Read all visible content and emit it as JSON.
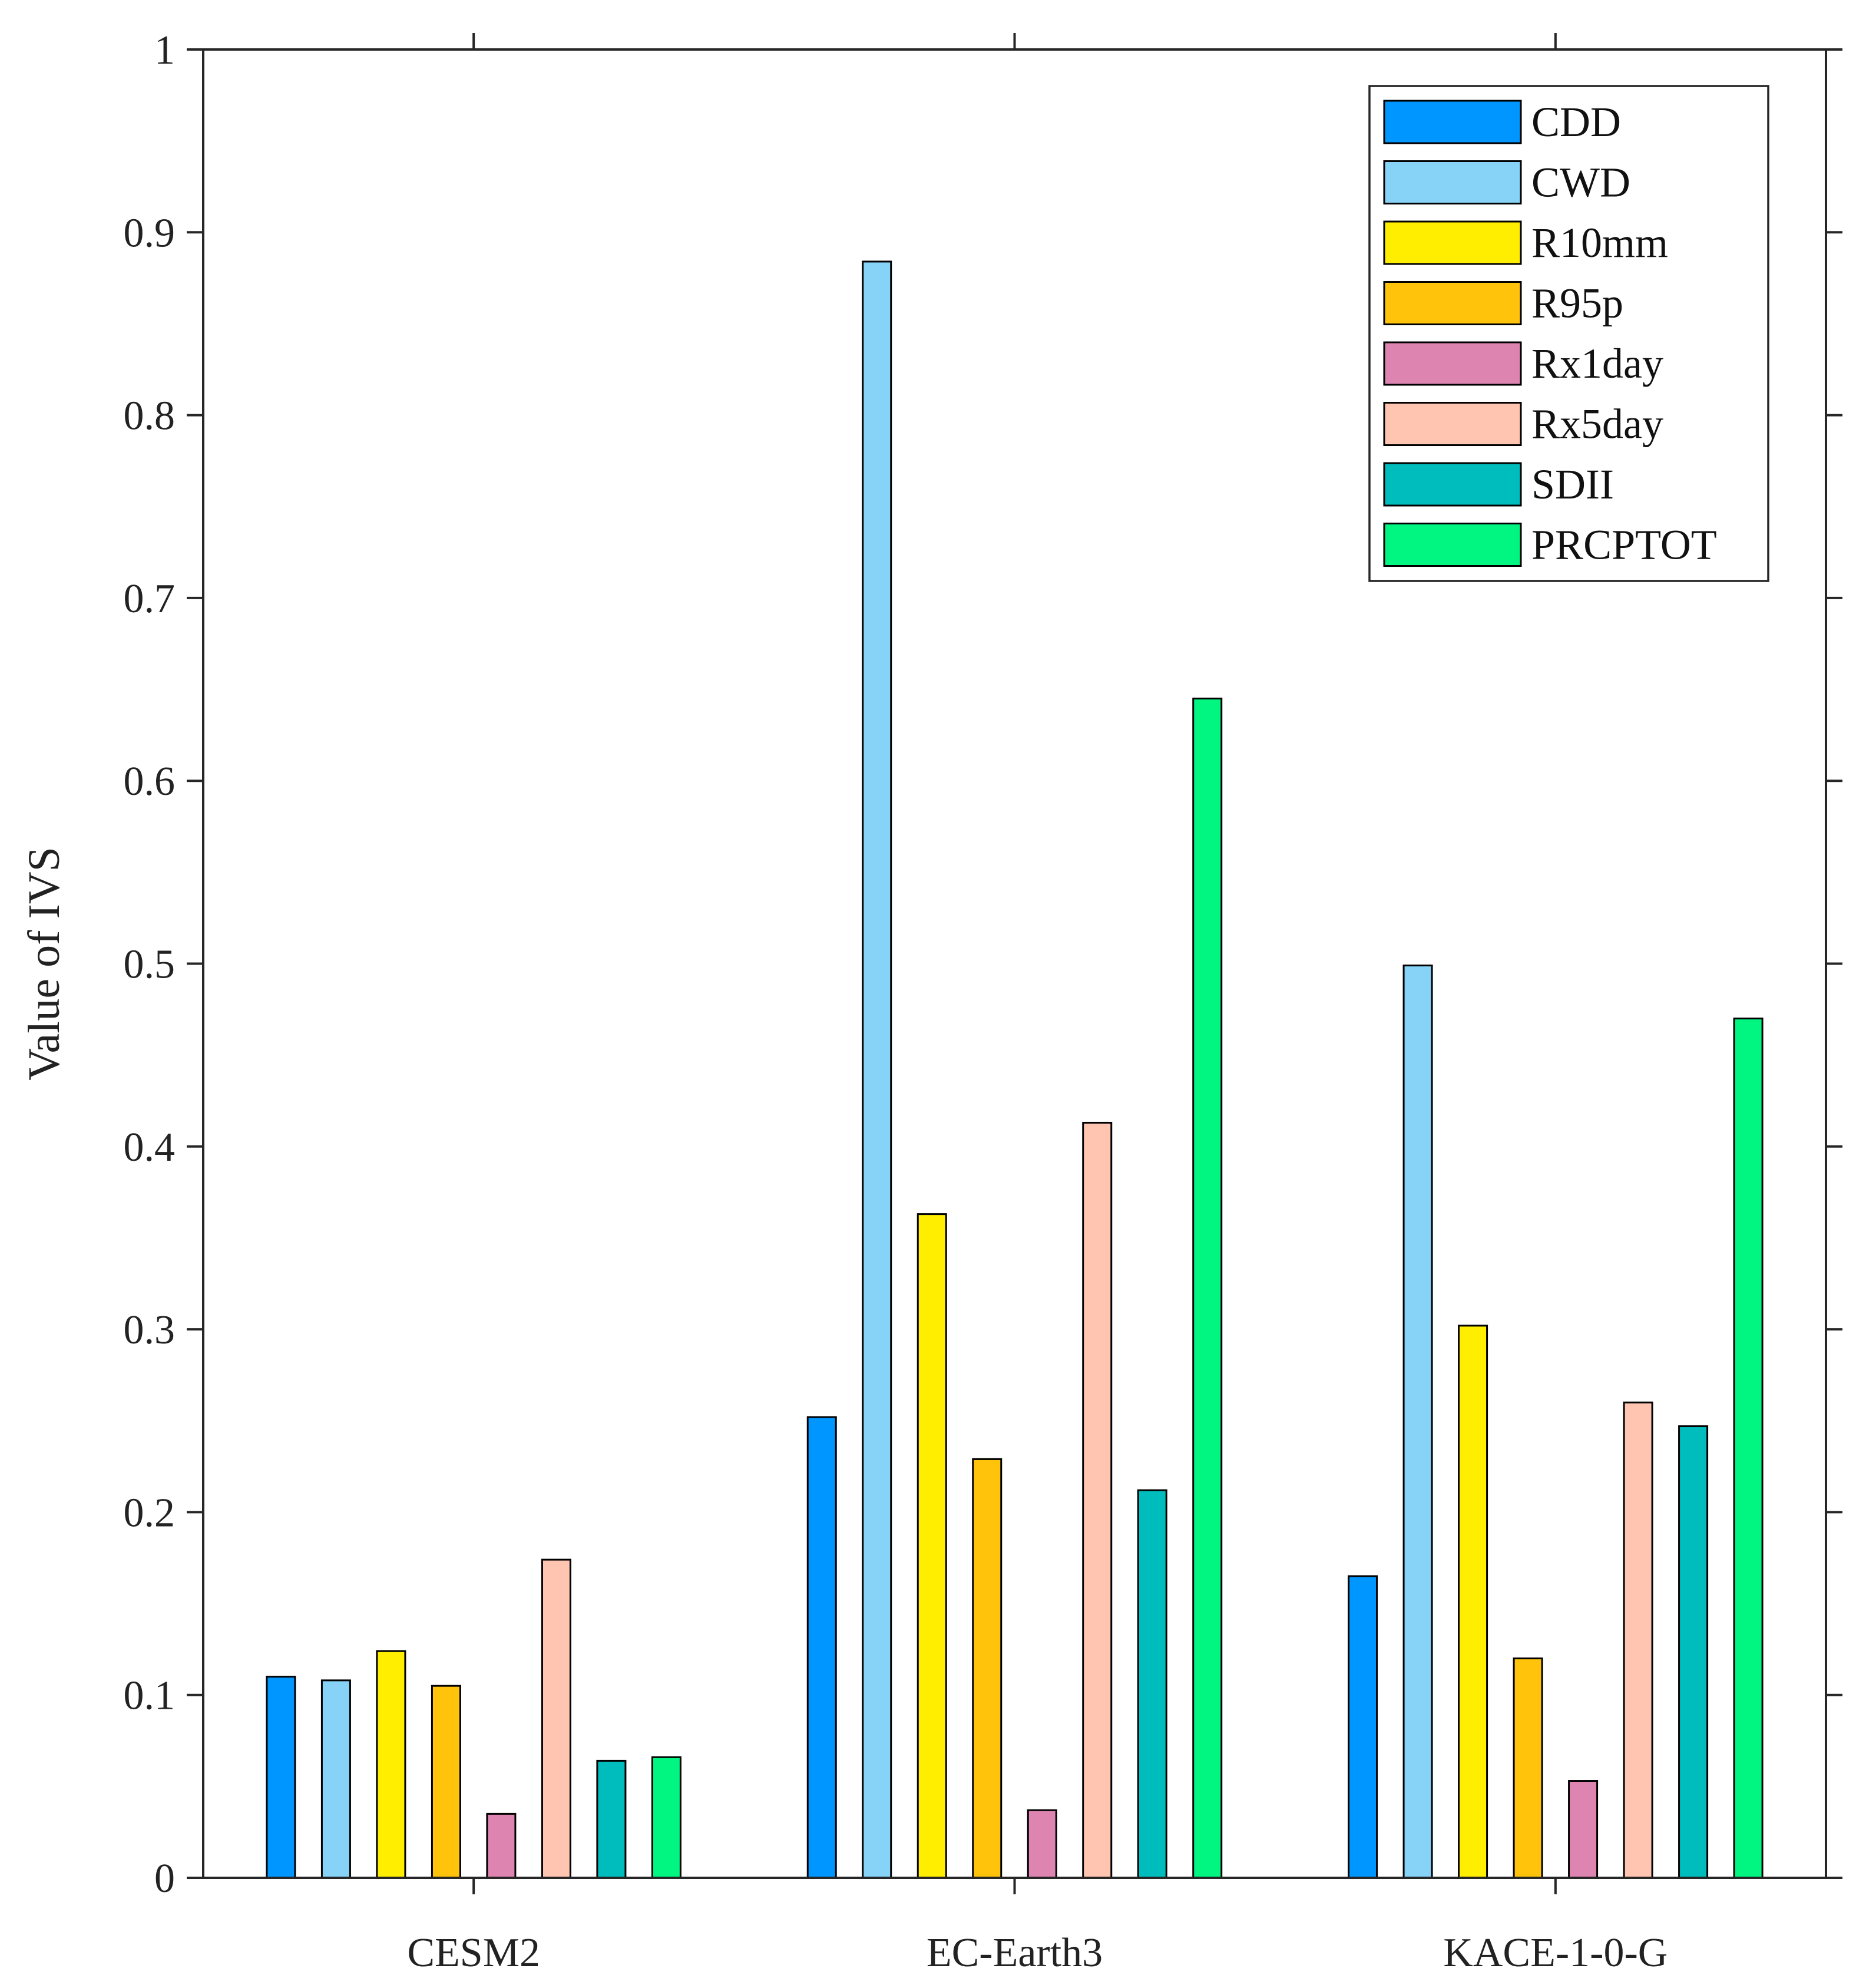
{
  "chart_data": {
    "type": "bar",
    "title": "",
    "xlabel": "",
    "ylabel": "Value of  IVS",
    "ylim": [
      0,
      1
    ],
    "yticks": [
      0,
      0.1,
      0.2,
      0.3,
      0.4,
      0.5,
      0.6,
      0.7,
      0.8,
      0.9,
      1
    ],
    "ytick_labels": [
      "0",
      "0.1",
      "0.2",
      "0.3",
      "0.4",
      "0.5",
      "0.6",
      "0.7",
      "0.8",
      "0.9",
      "1"
    ],
    "categories": [
      "CESM2",
      "EC-Earth3",
      "KACE-1-0-G"
    ],
    "legend_position": "top-right",
    "grid": false,
    "series": [
      {
        "name": "CDD",
        "color": "#0096ff",
        "values": [
          0.11,
          0.252,
          0.165
        ]
      },
      {
        "name": "CWD",
        "color": "#87d3f8",
        "values": [
          0.108,
          0.884,
          0.499
        ]
      },
      {
        "name": "R10mm",
        "color": "#ffee00",
        "values": [
          0.124,
          0.363,
          0.302
        ]
      },
      {
        "name": "R95p",
        "color": "#ffc30b",
        "values": [
          0.105,
          0.229,
          0.12
        ]
      },
      {
        "name": "Rx1day",
        "color": "#de84b1",
        "values": [
          0.035,
          0.037,
          0.053
        ]
      },
      {
        "name": "Rx5day",
        "color": "#ffc5b0",
        "values": [
          0.174,
          0.413,
          0.26
        ]
      },
      {
        "name": "SDII",
        "color": "#00bdbd",
        "values": [
          0.064,
          0.212,
          0.247
        ]
      },
      {
        "name": "PRCPTOT",
        "color": "#00f581",
        "values": [
          0.066,
          0.645,
          0.47
        ]
      }
    ]
  }
}
